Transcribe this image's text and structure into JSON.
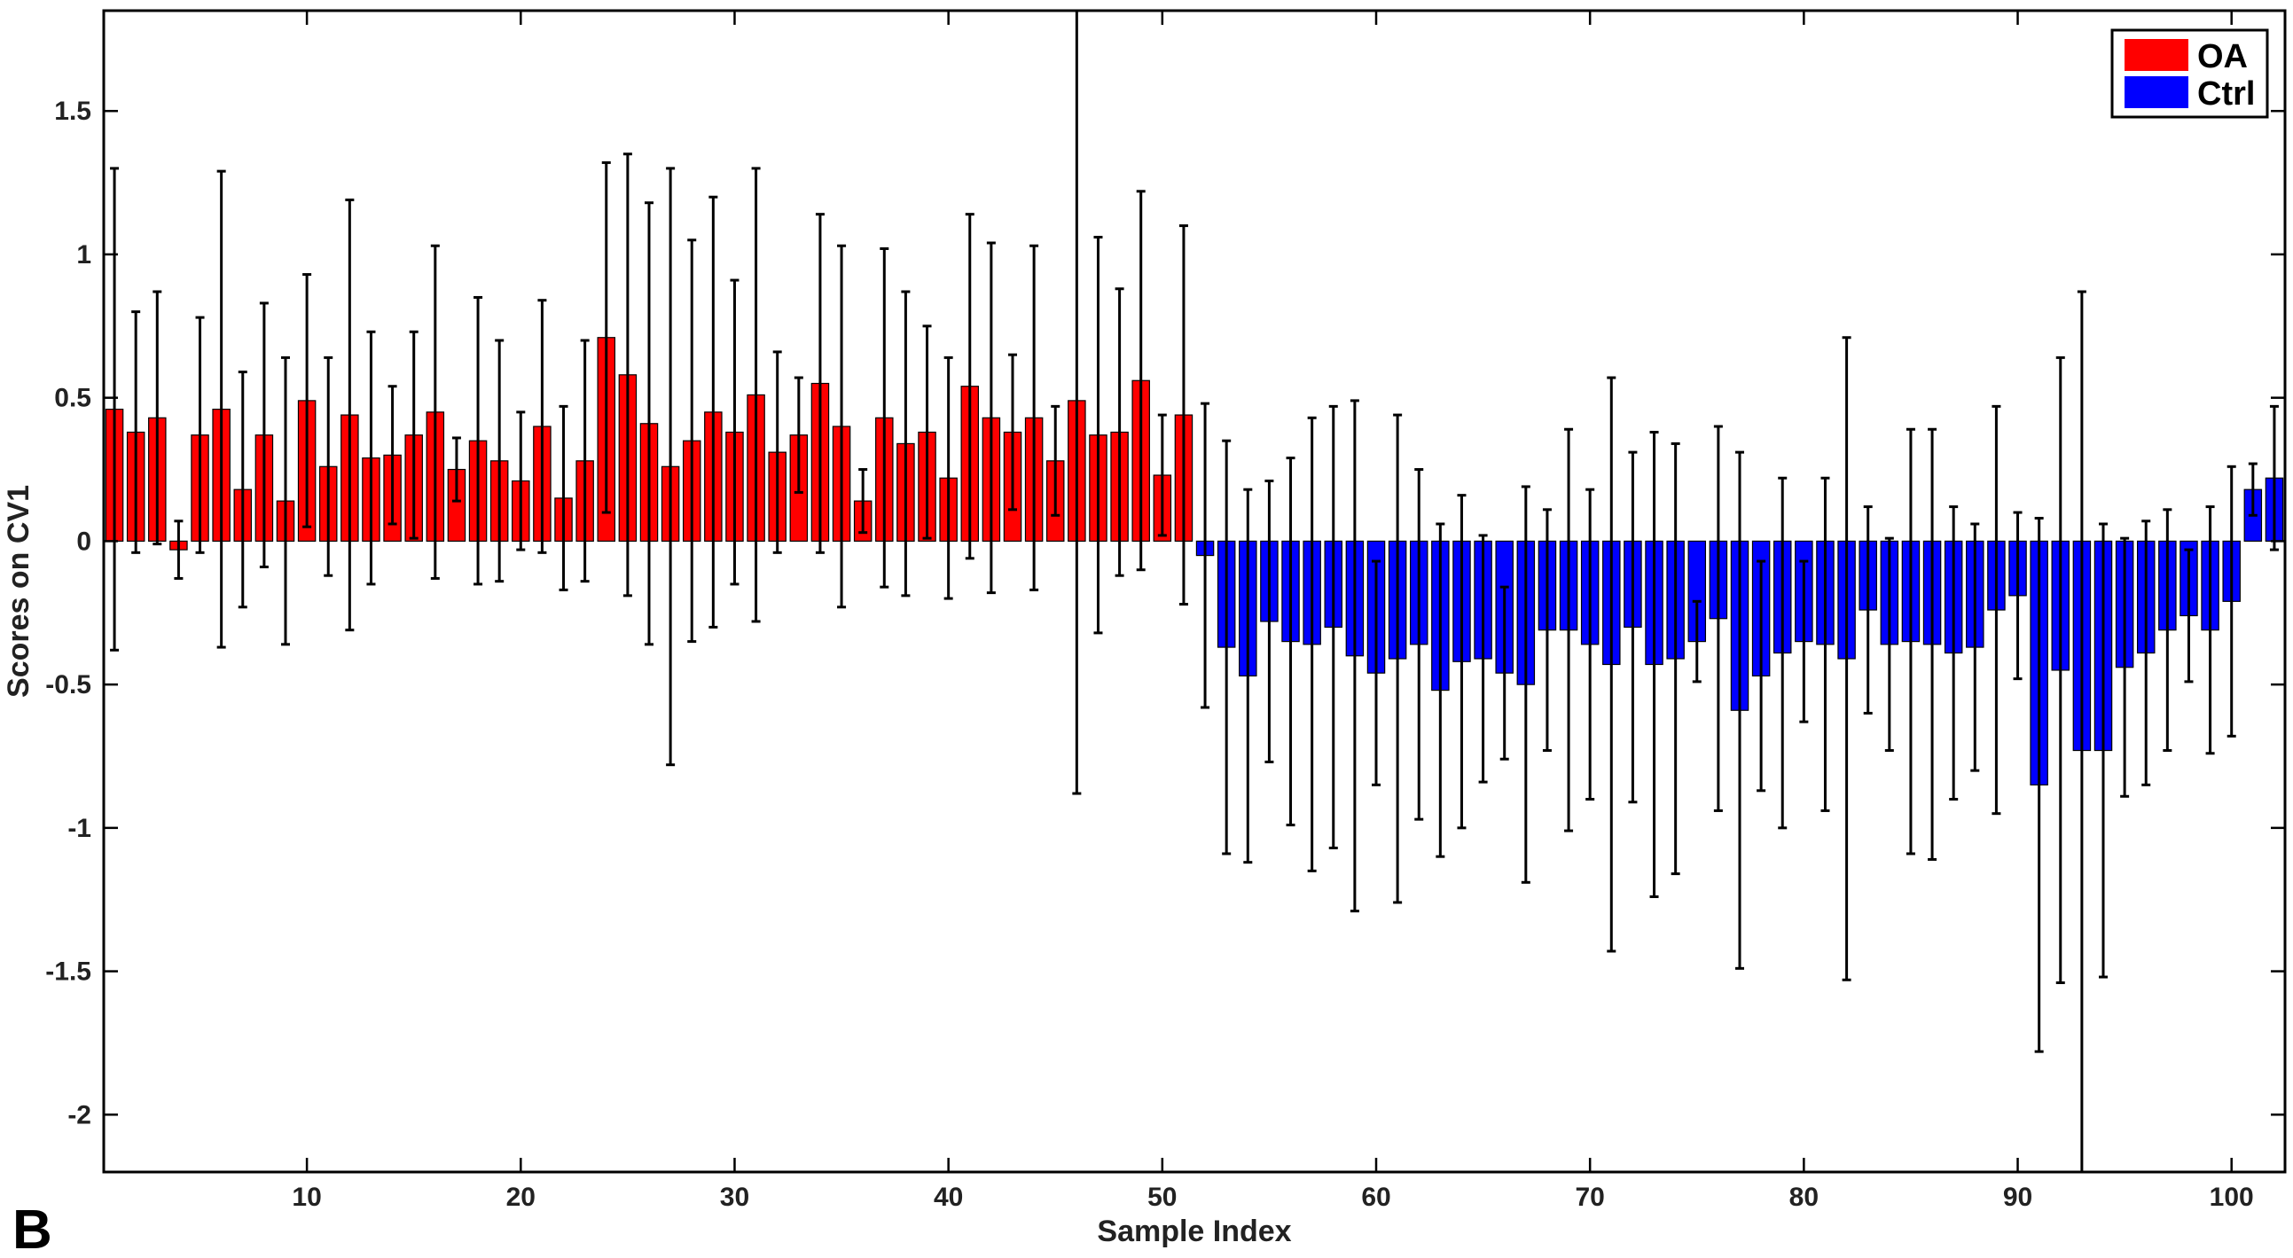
{
  "panel_label": "B",
  "colors": {
    "OA": "#ff0000",
    "Ctrl": "#0000ff",
    "error_bar": "#000000",
    "axis": "#000000"
  },
  "legend": {
    "placement": "top-right",
    "items": [
      {
        "label": "OA",
        "color": "#ff0000"
      },
      {
        "label": "Ctrl",
        "color": "#0000ff"
      }
    ]
  },
  "chart_data": {
    "type": "bar",
    "title": "",
    "xlabel": "Sample Index",
    "ylabel": "Scores on CV1",
    "xlim": [
      0.5,
      102.5
    ],
    "ylim": [
      -2.2,
      1.85
    ],
    "xticks": [
      10,
      20,
      30,
      40,
      50,
      60,
      70,
      80,
      90,
      100
    ],
    "xtick_labels": [
      "10",
      "20",
      "30",
      "40",
      "50",
      "60",
      "70",
      "80",
      "90",
      "100"
    ],
    "yticks": [
      -2,
      -1.5,
      -1,
      -0.5,
      0,
      0.5,
      1,
      1.5
    ],
    "ytick_labels": [
      "-2",
      "-1.5",
      "-1",
      "-0.5",
      "0",
      "0.5",
      "1",
      "1.5"
    ],
    "grid": false,
    "series": [
      {
        "name": "OA",
        "x": [
          1,
          2,
          3,
          4,
          5,
          6,
          7,
          8,
          9,
          10,
          11,
          12,
          13,
          14,
          15,
          16,
          17,
          18,
          19,
          20,
          21,
          22,
          23,
          24,
          25,
          26,
          27,
          28,
          29,
          30,
          31,
          32,
          33,
          34,
          35,
          36,
          37,
          38,
          39,
          40,
          41,
          42,
          43,
          44,
          45,
          46,
          47,
          48,
          49,
          50,
          51
        ],
        "values": [
          0.46,
          0.38,
          0.43,
          -0.03,
          0.37,
          0.46,
          0.18,
          0.37,
          0.14,
          0.49,
          0.26,
          0.44,
          0.29,
          0.3,
          0.37,
          0.45,
          0.25,
          0.35,
          0.28,
          0.21,
          0.4,
          0.15,
          0.28,
          0.71,
          0.58,
          0.41,
          0.26,
          0.35,
          0.45,
          0.38,
          0.51,
          0.31,
          0.37,
          0.55,
          0.4,
          0.14,
          0.43,
          0.34,
          0.38,
          0.22,
          0.54,
          0.43,
          0.38,
          0.43,
          0.28,
          0.49,
          0.37,
          0.38,
          0.56,
          0.23,
          0.44
        ],
        "errors": [
          0.84,
          0.42,
          0.44,
          0.1,
          0.41,
          0.83,
          0.41,
          0.46,
          0.5,
          0.44,
          0.38,
          0.75,
          0.44,
          0.24,
          0.36,
          0.58,
          0.11,
          0.5,
          0.42,
          0.24,
          0.44,
          0.32,
          0.42,
          0.61,
          0.77,
          0.77,
          1.04,
          0.7,
          0.75,
          0.53,
          0.79,
          0.35,
          0.2,
          0.59,
          0.63,
          0.11,
          0.59,
          0.53,
          0.37,
          0.42,
          0.6,
          0.61,
          0.27,
          0.6,
          0.19,
          1.37,
          0.69,
          0.5,
          0.66,
          0.21,
          0.66
        ]
      },
      {
        "name": "Ctrl",
        "x": [
          52,
          53,
          54,
          55,
          56,
          57,
          58,
          59,
          60,
          61,
          62,
          63,
          64,
          65,
          66,
          67,
          68,
          69,
          70,
          71,
          72,
          73,
          74,
          75,
          76,
          77,
          78,
          79,
          80,
          81,
          82,
          83,
          84,
          85,
          86,
          87,
          88,
          89,
          90,
          91,
          92,
          93,
          94,
          95,
          96,
          97,
          98,
          99,
          100,
          101,
          102
        ],
        "values": [
          -0.05,
          -0.37,
          -0.47,
          -0.28,
          -0.35,
          -0.36,
          -0.3,
          -0.4,
          -0.46,
          -0.41,
          -0.36,
          -0.52,
          -0.42,
          -0.41,
          -0.46,
          -0.5,
          -0.31,
          -0.31,
          -0.36,
          -0.43,
          -0.3,
          -0.43,
          -0.41,
          -0.35,
          -0.27,
          -0.59,
          -0.47,
          -0.39,
          -0.35,
          -0.36,
          -0.41,
          -0.24,
          -0.36,
          -0.35,
          -0.36,
          -0.39,
          -0.37,
          -0.24,
          -0.19,
          -0.85,
          -0.45,
          -0.73,
          -0.73,
          -0.44,
          -0.39,
          -0.31,
          -0.26,
          -0.31,
          -0.21,
          0.18,
          0.22
        ],
        "errors": [
          0.53,
          0.72,
          0.65,
          0.49,
          0.64,
          0.79,
          0.77,
          0.89,
          0.39,
          0.85,
          0.61,
          0.58,
          0.58,
          0.43,
          0.3,
          0.69,
          0.42,
          0.7,
          0.54,
          1.0,
          0.61,
          0.81,
          0.75,
          0.14,
          0.67,
          0.9,
          0.4,
          0.61,
          0.28,
          0.58,
          1.12,
          0.36,
          0.37,
          0.74,
          0.75,
          0.51,
          0.43,
          0.71,
          0.29,
          0.93,
          1.09,
          1.6,
          0.79,
          0.45,
          0.46,
          0.42,
          0.23,
          0.43,
          0.47,
          0.09,
          0.25
        ]
      }
    ]
  }
}
